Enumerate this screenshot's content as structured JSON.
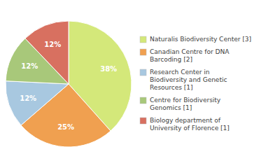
{
  "chart_data": {
    "type": "pie",
    "categories": [
      "Naturalis Biodiversity Center [3]",
      "Canadian Centre for DNA\nBarcoding [2]",
      "Research Center in\nBiodiversity and Genetic\nResources [1]",
      "Centre for Biodiversity\nGenomics [1]",
      "Biology department of\nUniversity of Florence [1]"
    ],
    "values": [
      38,
      25,
      12,
      12,
      12
    ],
    "value_labels": [
      "38%",
      "25%",
      "12%",
      "12%",
      "12%"
    ],
    "colors": [
      "#d4e87a",
      "#f0a050",
      "#a8c8e0",
      "#a8c87a",
      "#d87060"
    ],
    "data_labels": true,
    "legend": "right"
  }
}
